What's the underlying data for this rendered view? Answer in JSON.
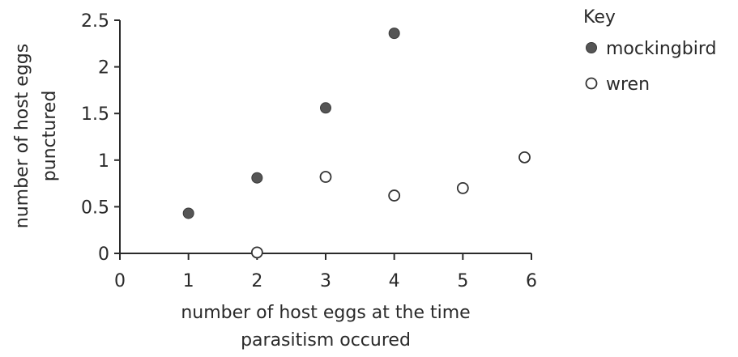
{
  "chart_data": {
    "type": "scatter",
    "title": "",
    "xlabel_lines": [
      "number of host eggs at the time",
      "parasitism occured"
    ],
    "ylabel_lines": [
      "number of host eggs",
      "punctured"
    ],
    "xlim": [
      0,
      6
    ],
    "ylim": [
      0,
      2.5
    ],
    "xticks": [
      0,
      1,
      2,
      3,
      4,
      5,
      6
    ],
    "xtick_labels": [
      "0",
      "1",
      "2",
      "3",
      "4",
      "5",
      "6"
    ],
    "yticks": [
      0,
      0.5,
      1,
      1.5,
      2,
      2.5
    ],
    "ytick_labels": [
      "0",
      "0.5",
      "1",
      "1.5",
      "2",
      "2.5"
    ],
    "grid": false,
    "legend": {
      "title": "Key",
      "position": "top-right"
    },
    "series": [
      {
        "name": "mockingbird",
        "marker": "filled-circle",
        "color": "#555555",
        "x": [
          1,
          2,
          3,
          4
        ],
        "y": [
          0.43,
          0.81,
          1.56,
          2.36
        ]
      },
      {
        "name": "wren",
        "marker": "open-circle",
        "color": "#333333",
        "x": [
          2,
          3,
          4,
          5,
          5.9
        ],
        "y": [
          0.01,
          0.82,
          0.62,
          0.7,
          1.03
        ]
      }
    ]
  }
}
